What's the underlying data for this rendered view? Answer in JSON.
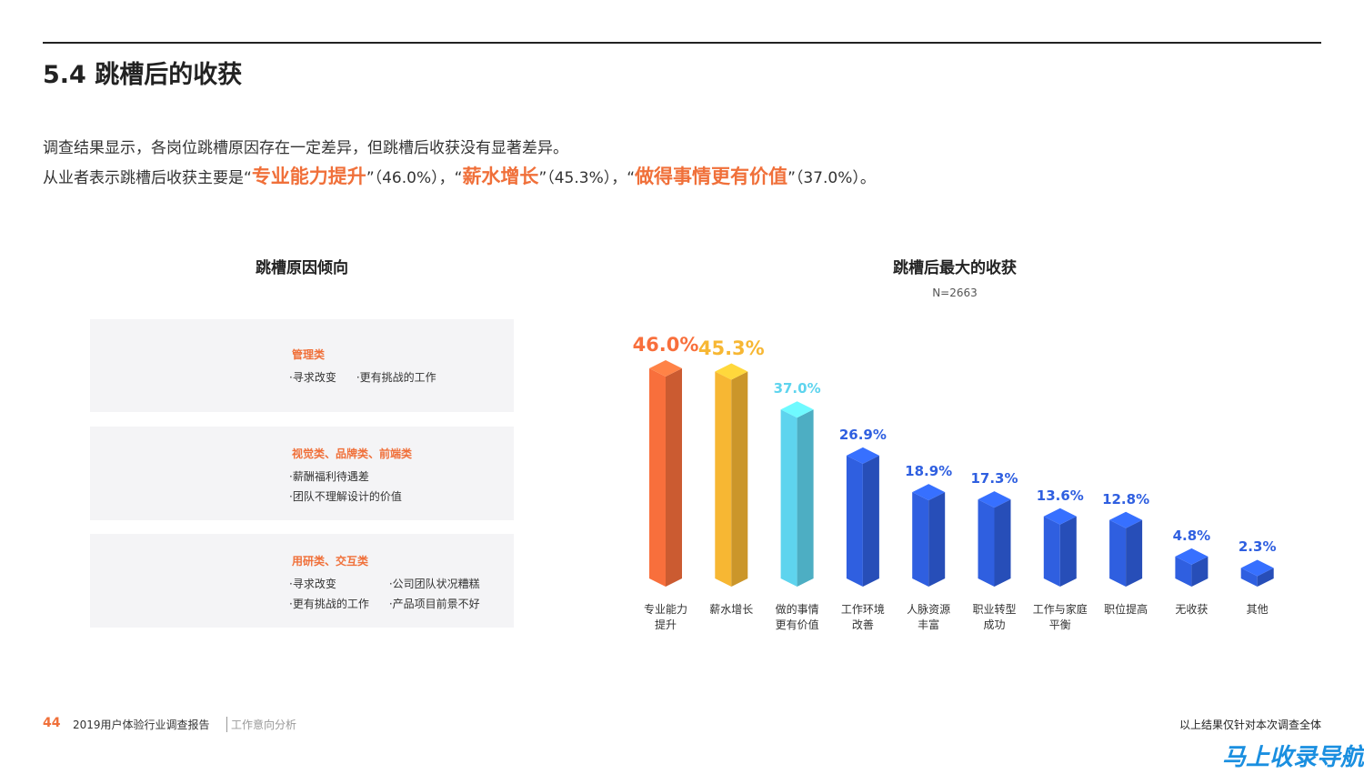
{
  "header": {
    "title": "5.4 跳槽后的收获"
  },
  "intro": {
    "line1": "调查结果显示，各岗位跳槽原因存在一定差异，但跳槽后收获没有显著差异。",
    "line2": [
      "从业者表示跳槽后收获主要是“",
      "专业能力提升",
      "”（46.0%），“",
      "薪水增长",
      "”（45.3%），“",
      "做得事情更有价值",
      "”（37.0%）。"
    ]
  },
  "reasons": {
    "title": "跳槽原因倾向",
    "groups": [
      {
        "title": "管理类",
        "items": [
          "·寻求改变",
          "·更有挑战的工作"
        ]
      },
      {
        "title": "视觉类、品牌类、前端类",
        "items": [
          "·薪酬福利待遇差",
          "·团队不理解设计的价值"
        ]
      },
      {
        "title": "用研类、交互类",
        "items": [
          "·寻求改变",
          "·公司团队状况糟糕",
          "·更有挑战的工作",
          "·产品项目前景不好"
        ]
      }
    ]
  },
  "chart_data": {
    "type": "bar3d",
    "title": "跳槽后最大的收获",
    "subtitle": "N=2663",
    "categories": [
      "专业能力\n提升",
      "薪水增长",
      "做的事情\n更有价值",
      "工作环境\n改善",
      "人脉资源\n丰富",
      "职业转型\n成功",
      "工作与家庭\n平衡",
      "职位提高",
      "无收获",
      "其他"
    ],
    "values": [
      46.0,
      45.3,
      37.0,
      26.9,
      18.9,
      17.3,
      13.6,
      12.8,
      4.8,
      2.3
    ],
    "value_labels": [
      "46.0%",
      "45.3%",
      "37.0%",
      "26.9%",
      "18.9%",
      "17.3%",
      "13.6%",
      "12.8%",
      "4.8%",
      "2.3%"
    ],
    "colors": [
      "#f86f3c",
      "#f7b733",
      "#5ed4ee",
      "#2f5fe0",
      "#2f5fe0",
      "#2f5fe0",
      "#2f5fe0",
      "#2f5fe0",
      "#2f5fe0",
      "#2f5fe0"
    ]
  },
  "footer": {
    "page": "44",
    "report": "2019用户体验行业调查报告",
    "section": "工作意向分析",
    "note": "以上结果仅针对本次调查全体",
    "watermark": "马上收录导航"
  }
}
